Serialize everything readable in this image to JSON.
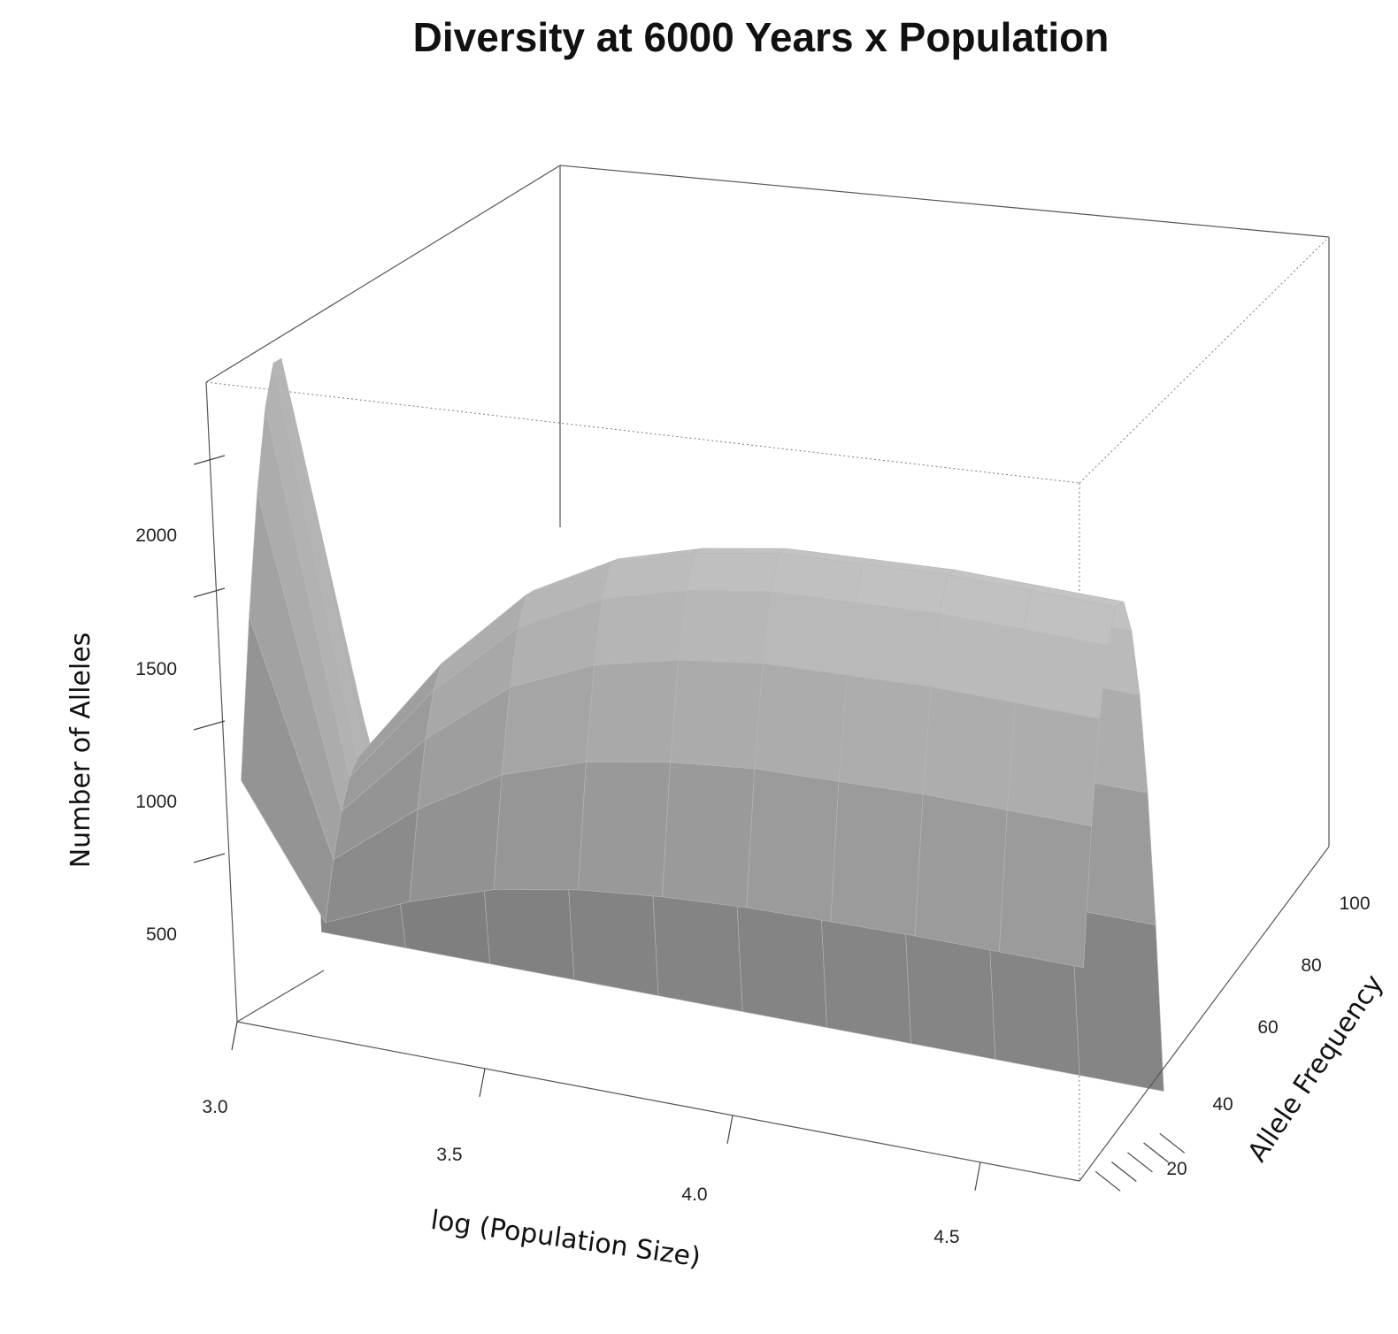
{
  "chart_data": {
    "type": "surface",
    "title": "Diversity at 6000 Years x Population",
    "x_label": "log (Population Size)",
    "y_label": "Allele Frequency",
    "z_label": "Number of Alleles",
    "x_ticks": [
      "3.0",
      "3.5",
      "4.0",
      "4.5"
    ],
    "y_ticks": [
      "20",
      "40",
      "60",
      "80",
      "100"
    ],
    "z_ticks": [
      "500",
      "1000",
      "1500",
      "2000"
    ],
    "x_range": [
      3.0,
      4.7
    ],
    "y_range": [
      0,
      108
    ],
    "z_range": [
      0,
      2500
    ],
    "surface": {
      "x": [
        3.0,
        3.17,
        3.34,
        3.51,
        3.68,
        3.85,
        4.02,
        4.19,
        4.36,
        4.53,
        4.7
      ],
      "y": [
        5,
        15,
        25,
        35,
        45,
        55,
        65,
        75,
        85,
        95,
        105
      ],
      "z_max_by_x": [
        2420,
        980,
        1400,
        1720,
        1900,
        2000,
        2060,
        2080,
        2100,
        2100,
        2100
      ],
      "z_min": 150,
      "peak_allele_frequency": 50
    },
    "grid": false,
    "colors": {
      "surface_light": "#d0d0d0",
      "surface_dark": "#5b5b5b",
      "box": "#444444"
    }
  }
}
